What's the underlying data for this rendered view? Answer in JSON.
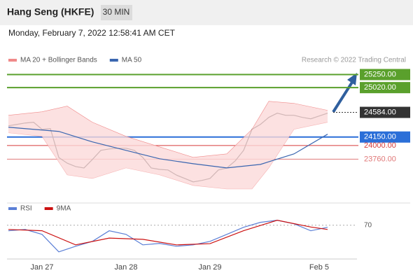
{
  "header": {
    "title": "Hang Seng (HKFE)",
    "interval": "30 MIN",
    "timestamp": "Monday, February 7, 2022 12:58:41 AM CET"
  },
  "credit": "Research © 2022 Trading Central",
  "chart_data": [
    {
      "type": "line",
      "categories": [
        null,
        null,
        null,
        null,
        "Jan 27",
        null,
        null,
        null,
        null,
        null,
        null,
        null,
        null,
        null,
        "Jan 28",
        null,
        null,
        null,
        null,
        null,
        null,
        null,
        null,
        null,
        "Jan 29",
        null,
        null,
        null,
        null,
        null,
        null,
        null,
        null,
        null,
        null,
        null,
        null,
        "Feb 5",
        null
      ],
      "ylim": [
        23050,
        25700
      ],
      "series": [
        {
          "color": "#2a2a2a",
          "values": [
            24348,
            24372,
            24397,
            24410,
            24286,
            24298,
            23790,
            23690,
            23630,
            23605,
            23755,
            23915,
            23940,
            23952,
            23952,
            23915,
            23790,
            23605,
            23580,
            23570,
            23480,
            23420,
            23360,
            23385,
            23420,
            23570,
            23605,
            23730,
            23915,
            24286,
            24372,
            24496,
            24570,
            24533,
            24533,
            24496,
            24471,
            24520,
            24570
          ]
        },
        {
          "name": "MA 20 + Bollinger Bands",
          "color": "#f08a8a",
          "x": [
            0,
            4,
            7,
            10,
            14,
            18,
            22,
            26,
            29,
            31,
            34,
            38
          ],
          "values": [
            24533,
            24595,
            24694,
            24410,
            24162,
            23977,
            23792,
            23853,
            24286,
            24780,
            24743,
            24620
          ],
          "lower": [
            24224,
            24162,
            23483,
            23420,
            23606,
            23483,
            23297,
            23235,
            23235,
            23606,
            24286,
            24410
          ]
        },
        {
          "name": "MA 50",
          "color": "#3a66b0",
          "x": [
            0,
            6,
            10,
            14,
            18,
            22,
            26,
            30,
            34,
            38
          ],
          "values": [
            24323,
            24249,
            24064,
            23915,
            23767,
            23680,
            23606,
            23668,
            23853,
            24200
          ]
        }
      ],
      "levels": [
        {
          "value": 25250,
          "label": "25250.00",
          "color": "#5aa02c",
          "boxed": true
        },
        {
          "value": 25020,
          "label": "25020.00",
          "color": "#5aa02c",
          "boxed": true
        },
        {
          "value": 24584,
          "label": "24584.00",
          "color": "#333333",
          "boxed": true,
          "dotted": true
        },
        {
          "value": 24150,
          "label": "24150.00",
          "color": "#2b6fd8",
          "boxed": true
        },
        {
          "value": 24000,
          "label": "24000.00",
          "color": "#d63a3a",
          "boxed": false
        },
        {
          "value": 23760,
          "label": "23760.00",
          "color": "#e07878",
          "boxed": false
        }
      ]
    },
    {
      "type": "line",
      "ylim": [
        15,
        89
      ],
      "yticks": [
        70
      ],
      "series": [
        {
          "name": "RSI",
          "color": "#5b7fd6",
          "x": [
            0,
            2,
            4,
            6,
            8,
            10,
            12,
            14,
            16,
            18,
            20,
            22,
            24,
            26,
            28,
            30,
            32,
            34,
            36,
            38
          ],
          "values": [
            60.9,
            63.1,
            55.1,
            26.6,
            35.7,
            43.7,
            60.9,
            55.1,
            38,
            40.3,
            35.7,
            38,
            43.7,
            55.1,
            66.6,
            74.6,
            78,
            72.3,
            60.9,
            66.6
          ]
        },
        {
          "name": "9MA",
          "color": "#cc1111",
          "x": [
            0,
            4,
            8,
            12,
            16,
            20,
            24,
            28,
            32,
            36,
            38
          ],
          "values": [
            63,
            61,
            38,
            49,
            47,
            38,
            40,
            61,
            78,
            67,
            63
          ]
        }
      ]
    }
  ]
}
